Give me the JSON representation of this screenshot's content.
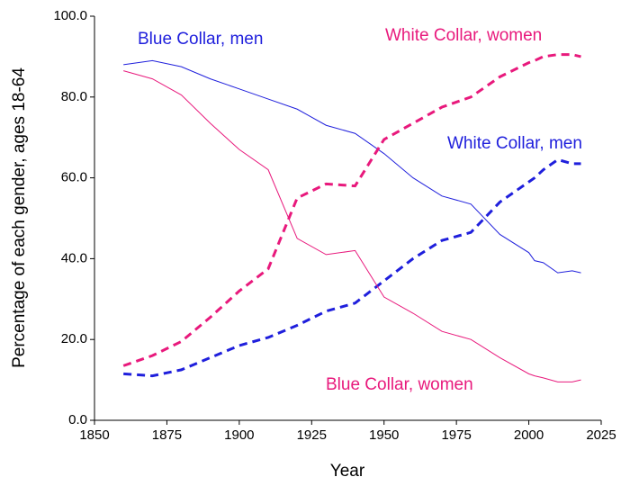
{
  "chart_data": {
    "type": "line",
    "x_label": "Year",
    "y_label": "Percentage of each gender, ages 18-64",
    "x": [
      1860,
      1870,
      1880,
      1890,
      1900,
      1910,
      1920,
      1930,
      1940,
      1950,
      1960,
      1970,
      1980,
      1990,
      2000,
      2002,
      2005,
      2010,
      2015,
      2018
    ],
    "series": [
      {
        "name": "Blue Collar, men",
        "color": "#1f1fdc",
        "line_style": "solid",
        "values": [
          88,
          89,
          87.5,
          84.5,
          82,
          79.5,
          77,
          73,
          71,
          66,
          60,
          55.5,
          53.5,
          46,
          41.5,
          39.5,
          39,
          36.5,
          37,
          36.5
        ]
      },
      {
        "name": "White Collar, women",
        "color": "#e8197c",
        "line_style": "dashed",
        "values": [
          13.5,
          16,
          19.5,
          25.5,
          32,
          37.5,
          55,
          58.5,
          58,
          69.5,
          73.5,
          77.5,
          80,
          85,
          88.5,
          89,
          90,
          90.5,
          90.5,
          90
        ]
      },
      {
        "name": "White Collar, men",
        "color": "#1f1fdc",
        "line_style": "dashed",
        "values": [
          11.5,
          11,
          12.5,
          15.5,
          18.5,
          20.5,
          23.5,
          27,
          29,
          34.5,
          40,
          44.5,
          46.5,
          54,
          59,
          60,
          62,
          64.5,
          63.5,
          63.5
        ]
      },
      {
        "name": "Blue Collar, women",
        "color": "#e8197c",
        "line_style": "solid",
        "values": [
          86.5,
          84.5,
          80.5,
          73.5,
          67,
          62,
          45,
          41,
          42,
          30.5,
          26.5,
          22,
          20,
          15.5,
          11.5,
          11,
          10.5,
          9.5,
          9.5,
          10
        ]
      }
    ],
    "xlim": [
      1850,
      2025
    ],
    "xticks": [
      1850,
      1875,
      1900,
      1925,
      1950,
      1975,
      2000,
      2025
    ],
    "ylim": [
      0,
      100
    ],
    "yticks": [
      {
        "value": 0,
        "label": "0.0"
      },
      {
        "value": 20,
        "label": "20.0"
      },
      {
        "value": 40,
        "label": "40.0"
      },
      {
        "value": 60,
        "label": "60.0"
      },
      {
        "value": 80,
        "label": "80.0"
      },
      {
        "value": 100,
        "label": "100.0"
      }
    ]
  }
}
